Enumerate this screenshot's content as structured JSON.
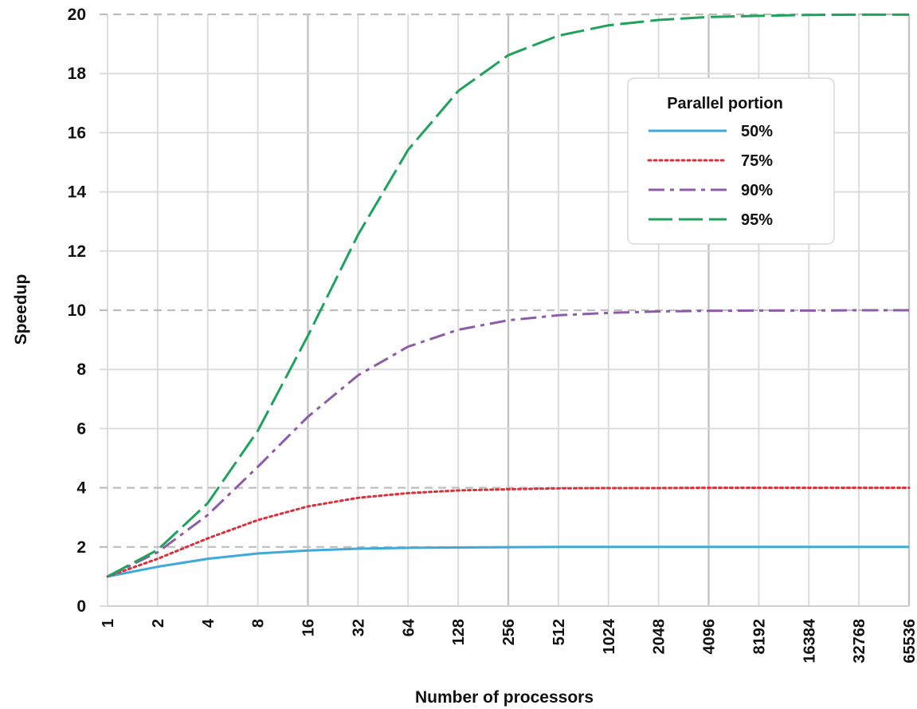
{
  "chart_data": {
    "type": "line",
    "title": "",
    "xlabel": "Number of processors",
    "ylabel": "Speedup",
    "x_scale": "log2",
    "x": [
      1,
      2,
      4,
      8,
      16,
      32,
      64,
      128,
      256,
      512,
      1024,
      2048,
      4096,
      8192,
      16384,
      32768,
      65536
    ],
    "x_tick_labels": [
      "1",
      "2",
      "4",
      "8",
      "16",
      "32",
      "64",
      "128",
      "256",
      "512",
      "1024",
      "2048",
      "4096",
      "8192",
      "16384",
      "32768",
      "65536"
    ],
    "y_ticks": [
      0,
      2,
      4,
      6,
      8,
      10,
      12,
      14,
      16,
      18,
      20
    ],
    "ylim": [
      0,
      20
    ],
    "grid": true,
    "legend": {
      "title": "Parallel portion",
      "position": "top-right"
    },
    "series": [
      {
        "name": "50%",
        "color": "#3fa9d9",
        "dash": "solid",
        "values": [
          1.0,
          1.33,
          1.6,
          1.78,
          1.88,
          1.94,
          1.97,
          1.98,
          1.99,
          2.0,
          2.0,
          2.0,
          2.0,
          2.0,
          2.0,
          2.0,
          2.0
        ]
      },
      {
        "name": "75%",
        "color": "#d9313c",
        "dash": "dotted",
        "values": [
          1.0,
          1.6,
          2.29,
          2.91,
          3.37,
          3.66,
          3.82,
          3.91,
          3.95,
          3.98,
          3.99,
          3.99,
          4.0,
          4.0,
          4.0,
          4.0,
          4.0
        ]
      },
      {
        "name": "90%",
        "color": "#8d5ca8",
        "dash": "dashdot",
        "values": [
          1.0,
          1.82,
          3.08,
          4.71,
          6.4,
          7.8,
          8.77,
          9.34,
          9.66,
          9.83,
          9.91,
          9.96,
          9.98,
          9.99,
          9.99,
          10.0,
          10.0
        ]
      },
      {
        "name": "95%",
        "color": "#1fa25b",
        "dash": "longdash",
        "values": [
          1.0,
          1.9,
          3.48,
          5.93,
          9.14,
          12.55,
          15.42,
          17.41,
          18.62,
          19.28,
          19.63,
          19.81,
          19.91,
          19.95,
          19.98,
          19.99,
          19.99
        ]
      }
    ]
  }
}
